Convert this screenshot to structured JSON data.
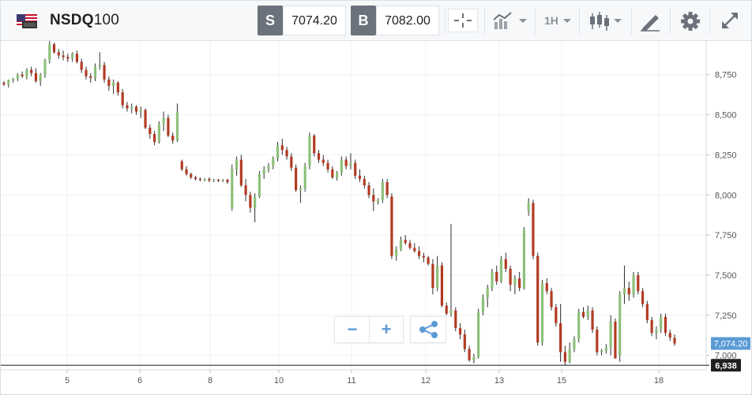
{
  "instrument": {
    "name_bold": "NSDQ",
    "name_suffix": "100",
    "flag_icon": "us-flag-icon"
  },
  "quote": {
    "sell_label": "S",
    "sell_price": "7074.20",
    "buy_label": "B",
    "buy_price": "7082.00"
  },
  "toolbar": {
    "timeframe": "1H",
    "icons": [
      "crosshair-icon",
      "chart-type-icon",
      "candlestick-icon",
      "drawing-tool-icon",
      "gear-icon",
      "expand-icon"
    ]
  },
  "zoom": {
    "minus": "−",
    "plus": "+",
    "share_icon": "share-icon"
  },
  "colors": {
    "up": "#8dc07a",
    "down": "#b23a22",
    "grid": "#eef1f4",
    "price_tag": "#5b9bd5",
    "low_tag": "#1f1f1f"
  },
  "chart_data": {
    "type": "candlestick",
    "y_ticks": [
      "8,750",
      "8,500",
      "8,250",
      "8,000",
      "7,750",
      "7,500",
      "7,250",
      "7,000"
    ],
    "y_tick_values": [
      8750,
      8500,
      8250,
      8000,
      7750,
      7500,
      7250,
      7000
    ],
    "x_ticks": [
      "5",
      "6",
      "8",
      "10",
      "11",
      "12",
      "13",
      "15",
      "18"
    ],
    "ylim": [
      6910,
      8960
    ],
    "current_price_label": "7,074.20",
    "current_price": 7074.2,
    "low_line_label": "6,938",
    "low_line": 6938,
    "grid": true,
    "candles": [
      [
        8700,
        8710,
        8680,
        8690
      ],
      [
        8690,
        8720,
        8670,
        8715
      ],
      [
        8715,
        8730,
        8700,
        8725
      ],
      [
        8725,
        8760,
        8710,
        8750
      ],
      [
        8750,
        8770,
        8730,
        8740
      ],
      [
        8740,
        8790,
        8720,
        8780
      ],
      [
        8780,
        8800,
        8740,
        8760
      ],
      [
        8760,
        8790,
        8700,
        8710
      ],
      [
        8710,
        8760,
        8680,
        8750
      ],
      [
        8750,
        8850,
        8730,
        8840
      ],
      [
        8840,
        8960,
        8820,
        8940
      ],
      [
        8940,
        8950,
        8880,
        8890
      ],
      [
        8890,
        8910,
        8850,
        8870
      ],
      [
        8870,
        8900,
        8840,
        8860
      ],
      [
        8860,
        8880,
        8830,
        8850
      ],
      [
        8850,
        8890,
        8830,
        8880
      ],
      [
        8880,
        8900,
        8820,
        8830
      ],
      [
        8830,
        8850,
        8760,
        8780
      ],
      [
        8780,
        8800,
        8720,
        8740
      ],
      [
        8740,
        8760,
        8700,
        8730
      ],
      [
        8730,
        8820,
        8710,
        8800
      ],
      [
        8800,
        8890,
        8780,
        8810
      ],
      [
        8810,
        8830,
        8700,
        8720
      ],
      [
        8720,
        8740,
        8650,
        8680
      ],
      [
        8680,
        8720,
        8630,
        8700
      ],
      [
        8700,
        8710,
        8620,
        8640
      ],
      [
        8640,
        8660,
        8540,
        8560
      ],
      [
        8560,
        8580,
        8520,
        8540
      ],
      [
        8540,
        8570,
        8510,
        8550
      ],
      [
        8550,
        8560,
        8500,
        8520
      ],
      [
        8520,
        8550,
        8480,
        8530
      ],
      [
        8530,
        8540,
        8410,
        8420
      ],
      [
        8420,
        8440,
        8350,
        8380
      ],
      [
        8380,
        8400,
        8310,
        8330
      ],
      [
        8330,
        8460,
        8320,
        8440
      ],
      [
        8440,
        8520,
        8400,
        8480
      ],
      [
        8480,
        8500,
        8360,
        8370
      ],
      [
        8370,
        8390,
        8320,
        8340
      ],
      [
        8340,
        8570,
        8330,
        8520
      ],
      [
        8210,
        8220,
        8150,
        8160
      ],
      [
        8160,
        8180,
        8120,
        8130
      ],
      [
        8130,
        8140,
        8100,
        8110
      ],
      [
        8110,
        8120,
        8090,
        8100
      ],
      [
        8100,
        8110,
        8085,
        8095
      ],
      [
        8095,
        8105,
        8085,
        8100
      ],
      [
        8100,
        8110,
        8080,
        8090
      ],
      [
        8090,
        8100,
        8080,
        8095
      ],
      [
        8095,
        8100,
        8080,
        8090
      ],
      [
        8090,
        8100,
        8080,
        8095
      ],
      [
        8095,
        8100,
        8070,
        8080
      ],
      [
        7920,
        8190,
        7900,
        8160
      ],
      [
        8160,
        8240,
        8120,
        8220
      ],
      [
        8220,
        8250,
        8050,
        8060
      ],
      [
        8060,
        8100,
        7960,
        8000
      ],
      [
        8000,
        8020,
        7890,
        7920
      ],
      [
        7920,
        8010,
        7830,
        7990
      ],
      [
        7990,
        8150,
        7980,
        8130
      ],
      [
        8130,
        8180,
        8100,
        8160
      ],
      [
        8160,
        8200,
        8140,
        8180
      ],
      [
        8180,
        8240,
        8160,
        8230
      ],
      [
        8230,
        8330,
        8210,
        8310
      ],
      [
        8310,
        8350,
        8250,
        8280
      ],
      [
        8280,
        8300,
        8220,
        8240
      ],
      [
        8240,
        8260,
        8150,
        8170
      ],
      [
        8170,
        8190,
        8020,
        8030
      ],
      [
        8030,
        8060,
        7950,
        8040
      ],
      [
        8040,
        8200,
        8020,
        8180
      ],
      [
        8180,
        8390,
        8160,
        8370
      ],
      [
        8370,
        8380,
        8240,
        8260
      ],
      [
        8260,
        8280,
        8200,
        8220
      ],
      [
        8220,
        8250,
        8180,
        8200
      ],
      [
        8200,
        8220,
        8140,
        8160
      ],
      [
        8160,
        8180,
        8100,
        8110
      ],
      [
        8110,
        8150,
        8090,
        8140
      ],
      [
        8140,
        8240,
        8120,
        8220
      ],
      [
        8220,
        8240,
        8160,
        8180
      ],
      [
        8180,
        8260,
        8160,
        8200
      ],
      [
        8200,
        8220,
        8100,
        8120
      ],
      [
        8120,
        8160,
        8080,
        8100
      ],
      [
        8100,
        8120,
        8040,
        8060
      ],
      [
        8060,
        8080,
        7980,
        8000
      ],
      [
        8000,
        8040,
        7900,
        7960
      ],
      [
        7960,
        7980,
        7940,
        7970
      ],
      [
        7970,
        8100,
        7950,
        8080
      ],
      [
        8080,
        8100,
        7980,
        8000
      ],
      [
        7990,
        8010,
        7600,
        7620
      ],
      [
        7620,
        7680,
        7590,
        7660
      ],
      [
        7660,
        7740,
        7650,
        7720
      ],
      [
        7720,
        7750,
        7690,
        7700
      ],
      [
        7700,
        7720,
        7660,
        7670
      ],
      [
        7670,
        7700,
        7640,
        7650
      ],
      [
        7650,
        7680,
        7600,
        7620
      ],
      [
        7620,
        7640,
        7580,
        7610
      ],
      [
        7610,
        7620,
        7560,
        7570
      ],
      [
        7570,
        7600,
        7380,
        7420
      ],
      [
        7420,
        7620,
        7400,
        7560
      ],
      [
        7560,
        7580,
        7300,
        7310
      ],
      [
        7310,
        7330,
        7250,
        7260
      ],
      [
        7260,
        7820,
        7240,
        7280
      ],
      [
        7280,
        7300,
        7150,
        7170
      ],
      [
        7170,
        7200,
        7100,
        7130
      ],
      [
        7130,
        7160,
        7020,
        7040
      ],
      [
        7040,
        7060,
        6960,
        6970
      ],
      [
        6970,
        7010,
        6950,
        6990
      ],
      [
        6990,
        7290,
        6980,
        7270
      ],
      [
        7270,
        7380,
        7250,
        7360
      ],
      [
        7360,
        7440,
        7300,
        7420
      ],
      [
        7420,
        7540,
        7400,
        7520
      ],
      [
        7520,
        7560,
        7440,
        7460
      ],
      [
        7460,
        7620,
        7450,
        7600
      ],
      [
        7600,
        7640,
        7520,
        7540
      ],
      [
        7540,
        7560,
        7400,
        7440
      ],
      [
        7440,
        7500,
        7380,
        7480
      ],
      [
        7480,
        7520,
        7400,
        7420
      ],
      [
        7420,
        7800,
        7410,
        7780
      ],
      [
        7900,
        7980,
        7870,
        7950
      ],
      [
        7950,
        7970,
        7600,
        7620
      ],
      [
        7620,
        7640,
        7060,
        7080
      ],
      [
        7080,
        7470,
        7060,
        7450
      ],
      [
        7450,
        7480,
        7380,
        7400
      ],
      [
        7400,
        7420,
        7280,
        7300
      ],
      [
        7300,
        7320,
        7180,
        7200
      ],
      [
        7200,
        7320,
        6960,
        7020
      ],
      [
        7020,
        7060,
        6940,
        6960
      ],
      [
        6960,
        7080,
        6950,
        7040
      ],
      [
        7040,
        7120,
        7020,
        7100
      ],
      [
        7100,
        7290,
        7080,
        7270
      ],
      [
        7270,
        7300,
        7230,
        7240
      ],
      [
        7240,
        7310,
        7220,
        7280
      ],
      [
        7280,
        7300,
        7140,
        7160
      ],
      [
        7160,
        7180,
        7000,
        7020
      ],
      [
        7020,
        7040,
        7000,
        7030
      ],
      [
        7030,
        7070,
        7010,
        7050
      ],
      [
        7050,
        7250,
        7000,
        7210
      ],
      [
        7210,
        7230,
        7000,
        6980
      ],
      [
        7000,
        7400,
        6960,
        7380
      ],
      [
        7380,
        7560,
        7320,
        7420
      ],
      [
        7420,
        7460,
        7340,
        7380
      ],
      [
        7380,
        7520,
        7360,
        7500
      ],
      [
        7500,
        7520,
        7380,
        7400
      ],
      [
        7400,
        7420,
        7300,
        7320
      ],
      [
        7320,
        7340,
        7200,
        7220
      ],
      [
        7220,
        7240,
        7120,
        7140
      ],
      [
        7140,
        7180,
        7100,
        7160
      ],
      [
        7160,
        7260,
        7140,
        7240
      ],
      [
        7240,
        7260,
        7120,
        7140
      ],
      [
        7140,
        7160,
        7090,
        7110
      ],
      [
        7110,
        7130,
        7060,
        7074
      ]
    ]
  }
}
